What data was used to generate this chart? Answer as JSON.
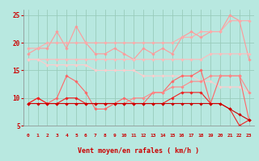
{
  "x": [
    0,
    1,
    2,
    3,
    4,
    5,
    6,
    7,
    8,
    9,
    10,
    11,
    12,
    13,
    14,
    15,
    16,
    17,
    18,
    19,
    20,
    21,
    22,
    23
  ],
  "series": [
    {
      "name": "upper_jagged",
      "color": "#ff9999",
      "linewidth": 0.8,
      "marker": "D",
      "markersize": 1.8,
      "values": [
        18,
        19,
        19,
        22,
        19,
        23,
        20,
        18,
        18,
        19,
        18,
        17,
        19,
        18,
        19,
        18,
        21,
        22,
        21,
        22,
        22,
        25,
        24,
        17
      ]
    },
    {
      "name": "upper_smooth",
      "color": "#ffaaaa",
      "linewidth": 0.8,
      "marker": "D",
      "markersize": 1.8,
      "values": [
        19,
        19,
        20,
        20,
        20,
        20,
        20,
        20,
        20,
        20,
        20,
        20,
        20,
        20,
        20,
        20,
        21,
        21,
        22,
        22,
        22,
        24,
        24,
        24
      ]
    },
    {
      "name": "mid_upper",
      "color": "#ffbbbb",
      "linewidth": 0.8,
      "marker": "D",
      "markersize": 1.8,
      "values": [
        17,
        17,
        17,
        17,
        17,
        17,
        17,
        17,
        17,
        17,
        17,
        17,
        17,
        17,
        17,
        17,
        17,
        17,
        17,
        18,
        18,
        18,
        18,
        18
      ]
    },
    {
      "name": "mid_lower",
      "color": "#ffcccc",
      "linewidth": 0.8,
      "marker": "D",
      "markersize": 1.8,
      "values": [
        17,
        17,
        16,
        16,
        16,
        16,
        16,
        15,
        15,
        15,
        15,
        15,
        14,
        14,
        14,
        14,
        14,
        14,
        13,
        13,
        12,
        12,
        12,
        11
      ]
    },
    {
      "name": "lower_jagged_upper",
      "color": "#ff6666",
      "linewidth": 0.8,
      "marker": "D",
      "markersize": 1.8,
      "values": [
        9,
        10,
        9,
        10,
        14,
        13,
        11,
        8,
        8,
        9,
        10,
        9,
        9,
        11,
        11,
        13,
        14,
        14,
        15,
        9,
        14,
        14,
        14,
        6
      ]
    },
    {
      "name": "lower_trend",
      "color": "#ff8888",
      "linewidth": 0.8,
      "marker": "D",
      "markersize": 1.8,
      "values": [
        9,
        9,
        9,
        9,
        9,
        9,
        9,
        9,
        9,
        9,
        9,
        10,
        10,
        11,
        11,
        12,
        12,
        13,
        13,
        14,
        14,
        14,
        14,
        11
      ]
    },
    {
      "name": "bottom_jagged",
      "color": "#ee2222",
      "linewidth": 0.8,
      "marker": "D",
      "markersize": 1.8,
      "values": [
        9,
        10,
        9,
        9,
        10,
        10,
        9,
        9,
        9,
        9,
        9,
        9,
        9,
        9,
        9,
        10,
        11,
        11,
        11,
        9,
        9,
        8,
        5,
        6
      ]
    },
    {
      "name": "bottom_flat",
      "color": "#cc0000",
      "linewidth": 0.8,
      "marker": "D",
      "markersize": 1.8,
      "values": [
        9,
        9,
        9,
        9,
        9,
        9,
        9,
        9,
        9,
        9,
        9,
        9,
        9,
        9,
        9,
        9,
        9,
        9,
        9,
        9,
        9,
        8,
        7,
        6
      ]
    }
  ],
  "xlabel": "Vent moyen/en rafales ( km/h )",
  "xlim_min": -0.5,
  "xlim_max": 23.5,
  "ylim_min": 5,
  "ylim_max": 26,
  "yticks": [
    5,
    10,
    15,
    20,
    25
  ],
  "xticks": [
    0,
    1,
    2,
    3,
    4,
    5,
    6,
    7,
    8,
    9,
    10,
    11,
    12,
    13,
    14,
    15,
    16,
    17,
    18,
    19,
    20,
    21,
    22,
    23
  ],
  "bg_color": "#b8e8e0",
  "grid_color": "#99ccbb",
  "tick_color": "#cc0000",
  "label_color": "#cc0000"
}
